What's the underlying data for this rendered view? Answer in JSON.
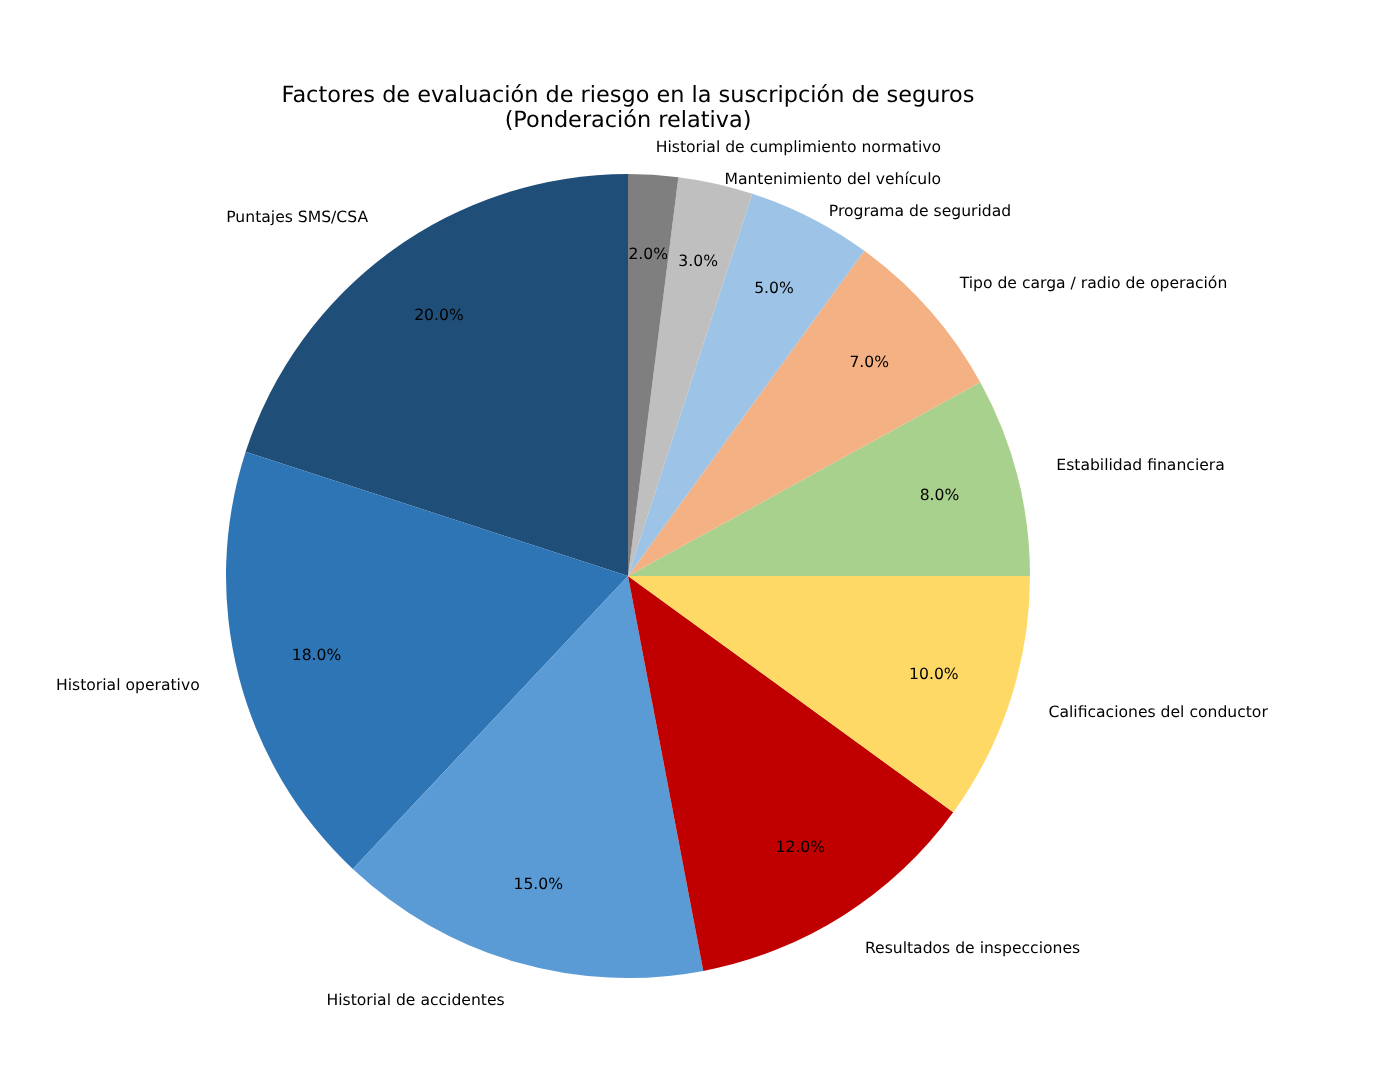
{
  "chart_data": {
    "type": "pie",
    "title": "Factores de evaluación de riesgo en la suscripción de seguros",
    "subtitle": "(Ponderación relativa)",
    "categories": [
      "Puntajes SMS/CSA",
      "Historial operativo",
      "Historial de accidentes",
      "Resultados de inspecciones",
      "Calificaciones del conductor",
      "Estabilidad financiera",
      "Tipo de carga / radio de operación",
      "Programa de seguridad",
      "Mantenimiento del vehículo",
      "Historial de cumplimiento normativo"
    ],
    "values": [
      20,
      18,
      15,
      12,
      10,
      8,
      7,
      5,
      3,
      2
    ],
    "colors": [
      "#1f4e79",
      "#2e75b6",
      "#5b9bd5",
      "#c00000",
      "#ffd966",
      "#a9d18e",
      "#f4b183",
      "#9dc3e6",
      "#bfbfbf",
      "#7f7f7f"
    ],
    "value_labels": [
      "20.0%",
      "18.0%",
      "15.0%",
      "12.0%",
      "10.0%",
      "8.0%",
      "7.0%",
      "5.0%",
      "3.0%",
      "2.0%"
    ]
  }
}
